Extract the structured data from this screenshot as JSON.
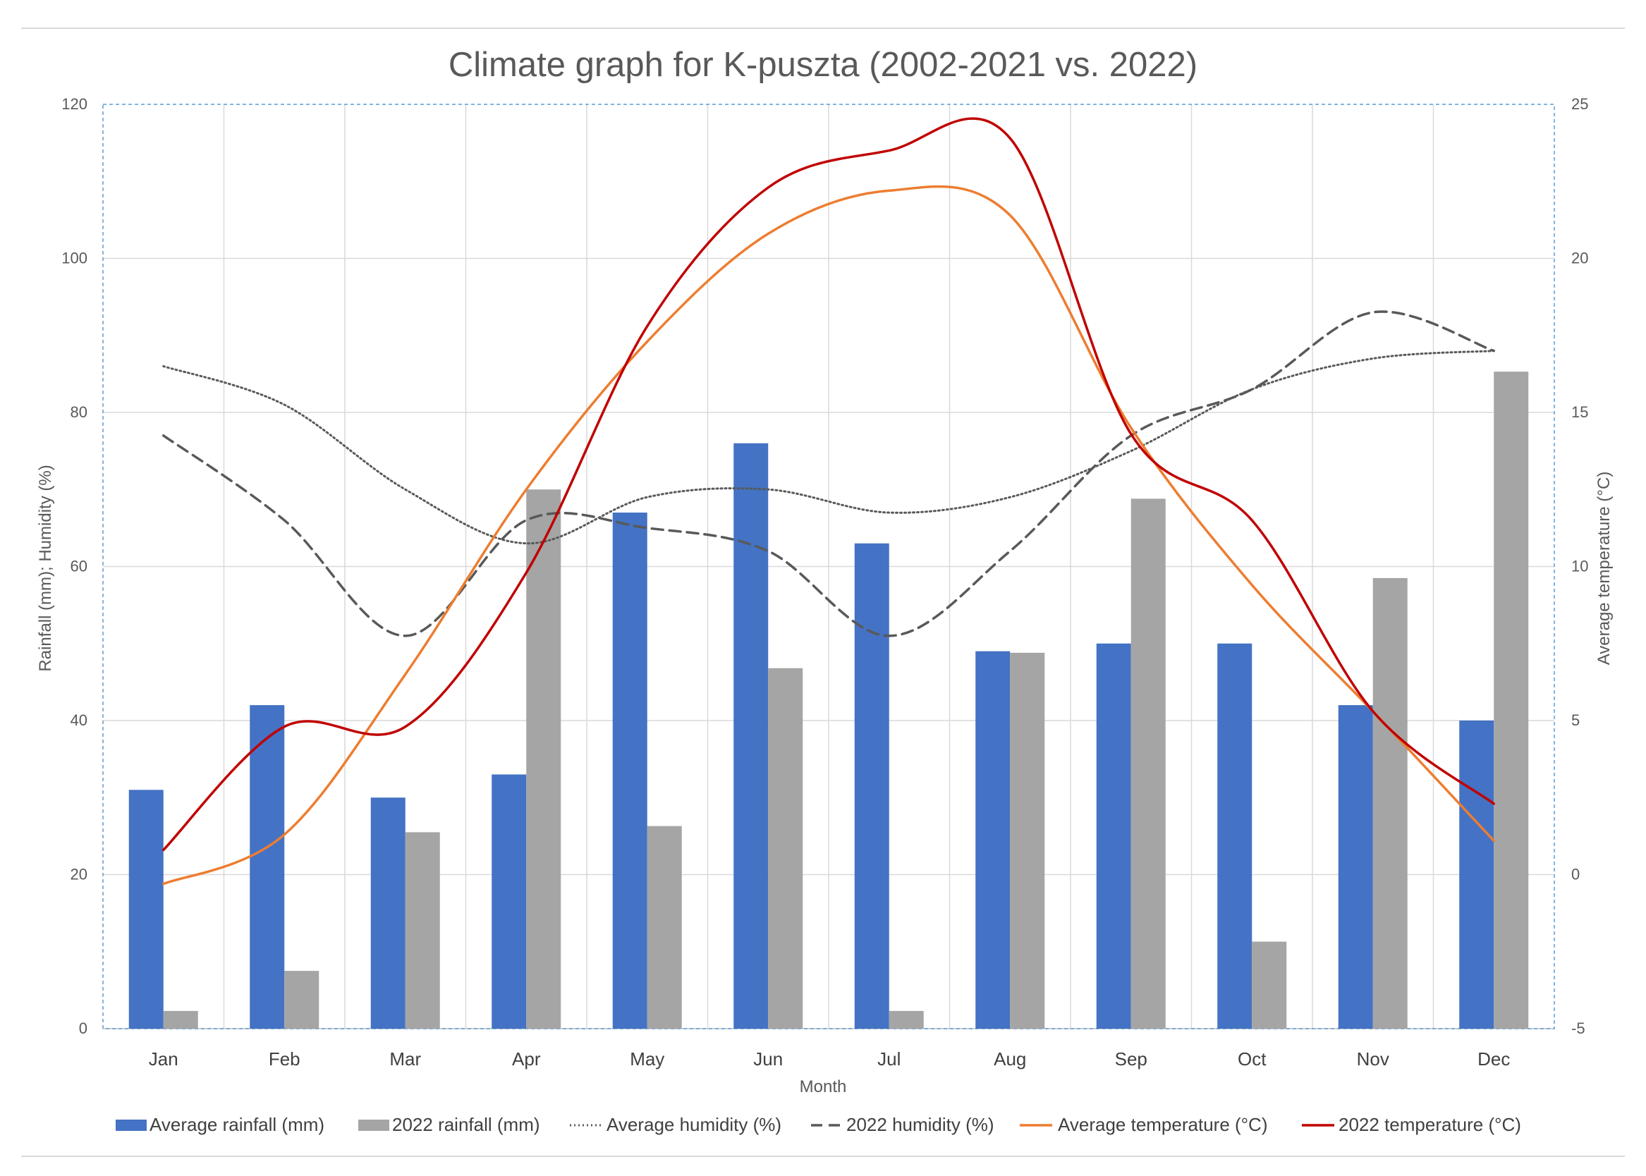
{
  "chart_data": {
    "type": "bar",
    "title": "Climate graph for K-puszta (2002-2021 vs. 2022)",
    "xlabel": "Month",
    "ylabel": "Rainfall (mm); Humidity (%)",
    "y2label": "Average temperature (°C)",
    "ylim": [
      0,
      120
    ],
    "y2lim": [
      -5,
      25
    ],
    "yticks": [
      "0",
      "20",
      "40",
      "60",
      "80",
      "100",
      "120"
    ],
    "y2ticks": [
      "-5",
      "0",
      "5",
      "10",
      "15",
      "20",
      "25"
    ],
    "grid": true,
    "legend_position": "bottom",
    "categories": [
      "Jan",
      "Feb",
      "Mar",
      "Apr",
      "May",
      "Jun",
      "Jul",
      "Aug",
      "Sep",
      "Oct",
      "Nov",
      "Dec"
    ],
    "series": [
      {
        "name": "Average rainfall (mm)",
        "kind": "bar",
        "axis": "left",
        "color": "#4472C4",
        "values": [
          31,
          42,
          30,
          33,
          67,
          76,
          63,
          49,
          50,
          50,
          42,
          40
        ]
      },
      {
        "name": "2022 rainfall (mm)",
        "kind": "bar",
        "axis": "left",
        "color": "#A5A5A5",
        "values": [
          2.3,
          7.5,
          25.5,
          70,
          26.3,
          46.8,
          2.3,
          48.8,
          68.8,
          11.3,
          58.5,
          85.3
        ]
      },
      {
        "name": "Average humidity (%)",
        "kind": "line",
        "style": "dotted",
        "axis": "left",
        "color": "#595959",
        "values": [
          86,
          81,
          70,
          63,
          69,
          70,
          67,
          69,
          75,
          83,
          87,
          88
        ]
      },
      {
        "name": "2022 humidity (%)",
        "kind": "line",
        "style": "dashed",
        "axis": "left",
        "color": "#595959",
        "values": [
          77,
          66,
          51,
          66,
          65,
          62,
          51,
          62,
          77,
          83,
          93,
          88
        ]
      },
      {
        "name": "Average temperature (°C)",
        "kind": "line",
        "style": "solid",
        "axis": "right",
        "color": "#ED7D31",
        "values": [
          -0.3,
          1.3,
          6.5,
          12.5,
          17.3,
          20.8,
          22.2,
          21.4,
          14.5,
          9.4,
          5.3,
          1.1
        ]
      },
      {
        "name": "2022 temperature (°C)",
        "kind": "line",
        "style": "solid",
        "axis": "right",
        "color": "#C00000",
        "values": [
          0.8,
          4.8,
          4.8,
          9.8,
          17.8,
          22.3,
          23.5,
          23.9,
          14.3,
          11.5,
          5.3,
          2.3
        ]
      }
    ]
  }
}
